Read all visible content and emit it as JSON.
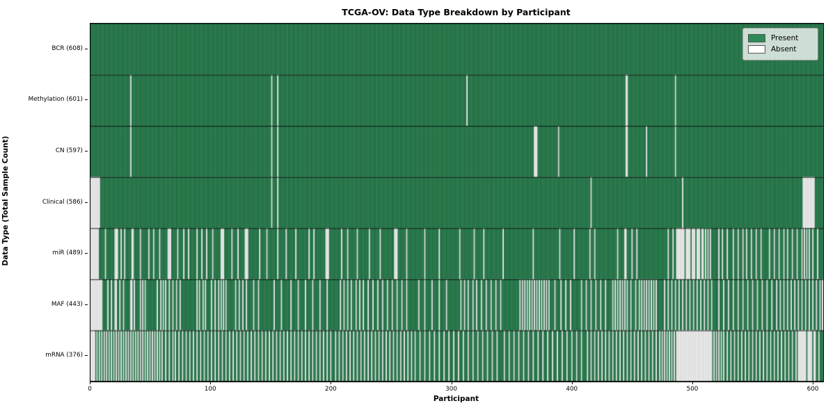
{
  "title": "TCGA-OV: Data Type Breakdown by Participant",
  "xlabel": "Participant",
  "ylabel": "Data Type (Total Sample Count)",
  "legend": {
    "present_label": "Present",
    "absent_label": "Absent"
  },
  "colors": {
    "present": "#2e8b57",
    "absent": "#ffffff",
    "present_edge": "rgba(8,38,22,0.6)",
    "absent_edge": "rgba(130,130,130,0.6)",
    "row_line": "rgba(0,0,0,0.85)"
  },
  "chart_data": {
    "type": "heatmap",
    "n_participants": 608,
    "xlim": [
      0,
      608
    ],
    "x_ticks": [
      0,
      100,
      200,
      300,
      400,
      500,
      600
    ],
    "legend_position": "upper right",
    "rows": [
      {
        "name": "BCR",
        "total": 608,
        "label": "BCR (608)",
        "absent": []
      },
      {
        "name": "Methylation",
        "total": 601,
        "label": "Methylation (601)",
        "absent": [
          33,
          150,
          155,
          312,
          444,
          445,
          485
        ]
      },
      {
        "name": "CN",
        "total": 597,
        "label": "CN (597)",
        "absent": [
          33,
          150,
          155,
          368,
          369,
          370,
          388,
          444,
          445,
          461,
          485
        ]
      },
      {
        "name": "Clinical",
        "total": 586,
        "label": "Clinical (586)",
        "absent": [
          0,
          1,
          2,
          3,
          4,
          5,
          6,
          7,
          150,
          155,
          415,
          491,
          591,
          592,
          593,
          594,
          595,
          596,
          597,
          598,
          599,
          600
        ]
      },
      {
        "name": "miR",
        "total": 489,
        "label": "miR (489)",
        "absent": [
          0,
          1,
          2,
          3,
          4,
          5,
          6,
          12,
          20,
          21,
          22,
          25,
          28,
          34,
          35,
          41,
          48,
          52,
          57,
          64,
          65,
          66,
          72,
          77,
          81,
          88,
          92,
          96,
          101,
          108,
          109,
          110,
          117,
          122,
          128,
          129,
          130,
          140,
          146,
          155,
          162,
          170,
          181,
          185,
          195,
          196,
          197,
          208,
          213,
          221,
          231,
          240,
          252,
          253,
          254,
          262,
          277,
          289,
          306,
          318,
          326,
          342,
          367,
          389,
          401,
          414,
          418,
          437,
          443,
          444,
          449,
          453,
          479,
          483,
          486,
          487,
          488,
          489,
          490,
          491,
          492,
          494,
          495,
          496,
          497,
          499,
          500,
          501,
          503,
          504,
          505,
          507,
          508,
          510,
          512,
          514,
          521,
          524,
          528,
          533,
          537,
          541,
          544,
          548,
          552,
          556,
          563,
          567,
          571,
          575,
          578,
          582,
          586,
          590,
          592,
          594,
          596,
          599,
          603
        ]
      },
      {
        "name": "MAF",
        "total": 443,
        "label": "MAF (443)",
        "absent": [
          0,
          1,
          2,
          3,
          4,
          5,
          6,
          7,
          8,
          9,
          14,
          17,
          20,
          21,
          24,
          27,
          33,
          34,
          36,
          41,
          43,
          45,
          55,
          58,
          60,
          62,
          65,
          68,
          71,
          74,
          88,
          90,
          93,
          95,
          100,
          103,
          106,
          108,
          110,
          112,
          120,
          123,
          126,
          129,
          135,
          139,
          152,
          158,
          166,
          172,
          178,
          184,
          190,
          196,
          207,
          210,
          213,
          216,
          220,
          223,
          226,
          230,
          234,
          238,
          242,
          246,
          250,
          254,
          258,
          262,
          272,
          277,
          283,
          289,
          295,
          307,
          310,
          313,
          317,
          320,
          324,
          328,
          332,
          336,
          340,
          356,
          358,
          360,
          362,
          364,
          366,
          368,
          370,
          372,
          374,
          376,
          378,
          380,
          385,
          390,
          394,
          398,
          407,
          411,
          415,
          419,
          423,
          427,
          433,
          435,
          437,
          439,
          441,
          443,
          445,
          448,
          452,
          455,
          457,
          459,
          461,
          463,
          465,
          467,
          469,
          476,
          479,
          482,
          485,
          488,
          491,
          494,
          497,
          500,
          503,
          506,
          509,
          512,
          515,
          521,
          525,
          529,
          533,
          537,
          541,
          545,
          549,
          553,
          557,
          561,
          565,
          569,
          572,
          575,
          578,
          581,
          584,
          587,
          590,
          593,
          596,
          599,
          602,
          605,
          607
        ]
      },
      {
        "name": "mRNA",
        "total": 376,
        "label": "mRNA (376)",
        "absent": [
          0,
          1,
          2,
          3,
          5,
          7,
          9,
          11,
          13,
          15,
          17,
          19,
          21,
          23,
          25,
          27,
          29,
          31,
          33,
          35,
          37,
          39,
          41,
          43,
          45,
          47,
          49,
          51,
          53,
          55,
          57,
          59,
          62,
          65,
          68,
          70,
          73,
          76,
          79,
          82,
          85,
          88,
          91,
          94,
          97,
          100,
          103,
          106,
          109,
          112,
          115,
          118,
          121,
          124,
          127,
          130,
          133,
          136,
          139,
          142,
          145,
          148,
          151,
          154,
          157,
          160,
          163,
          166,
          169,
          172,
          175,
          178,
          181,
          184,
          187,
          190,
          193,
          196,
          199,
          203,
          206,
          209,
          212,
          215,
          218,
          221,
          224,
          227,
          230,
          233,
          236,
          239,
          242,
          245,
          248,
          251,
          254,
          257,
          260,
          263,
          266,
          269,
          273,
          277,
          281,
          285,
          289,
          293,
          297,
          301,
          305,
          309,
          313,
          317,
          321,
          325,
          329,
          333,
          337,
          343,
          347,
          351,
          355,
          359,
          363,
          367,
          371,
          375,
          379,
          383,
          387,
          391,
          395,
          399,
          403,
          407,
          412,
          415,
          418,
          421,
          424,
          427,
          430,
          433,
          436,
          439,
          442,
          445,
          448,
          451,
          454,
          457,
          460,
          463,
          466,
          469,
          472,
          474,
          476,
          478,
          480,
          482,
          484,
          486,
          487,
          488,
          489,
          490,
          491,
          492,
          493,
          494,
          495,
          496,
          497,
          498,
          499,
          500,
          501,
          502,
          503,
          504,
          505,
          506,
          507,
          508,
          509,
          510,
          511,
          512,
          513,
          514,
          515,
          517,
          519,
          521,
          523,
          525,
          528,
          531,
          534,
          537,
          540,
          543,
          546,
          549,
          552,
          555,
          558,
          561,
          564,
          567,
          570,
          573,
          576,
          579,
          582,
          585,
          587,
          588,
          589,
          590,
          591,
          592,
          593,
          595,
          596,
          597,
          598,
          600,
          601,
          604
        ]
      }
    ]
  }
}
